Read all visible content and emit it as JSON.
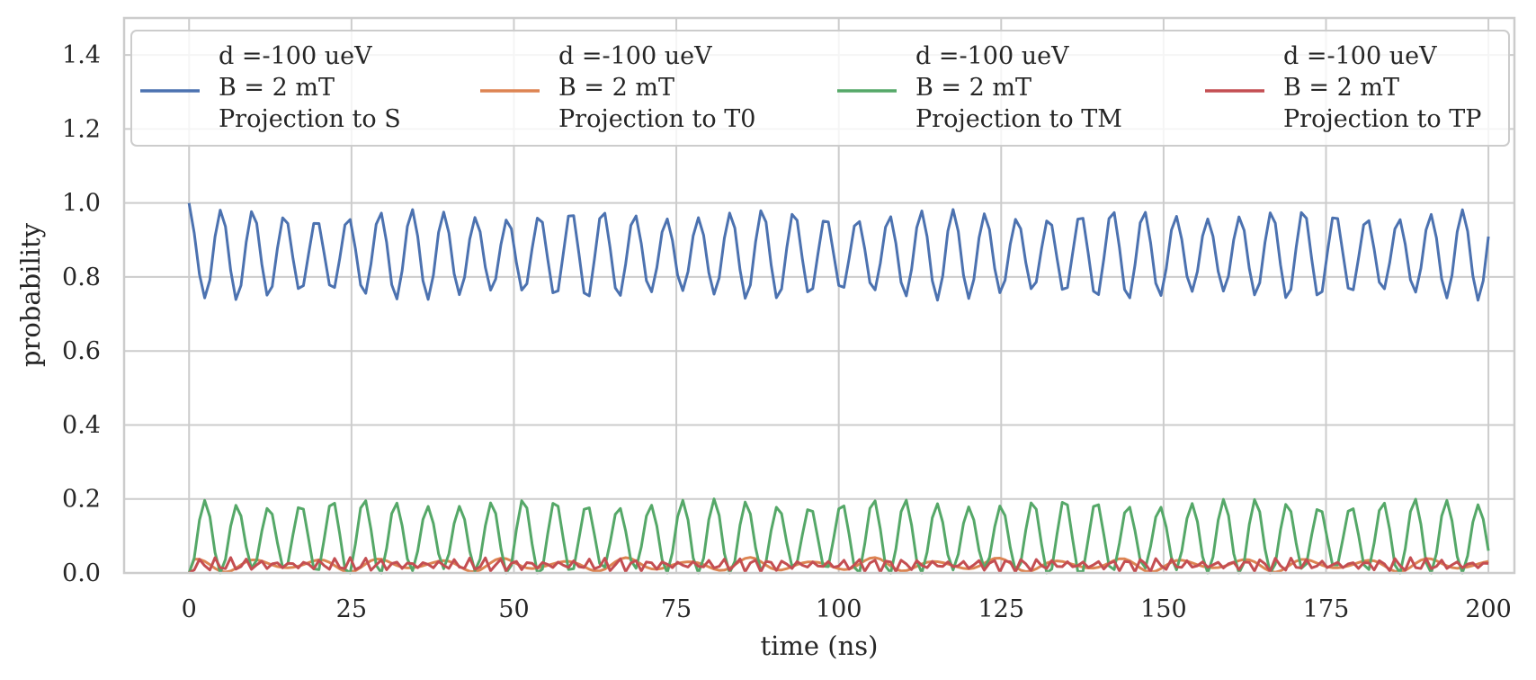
{
  "chart_data": {
    "type": "line",
    "xlabel": "time (ns)",
    "ylabel": "probability",
    "xlim": [
      -10,
      204
    ],
    "ylim": [
      0,
      1.5
    ],
    "xticks": [
      0,
      25,
      50,
      75,
      100,
      125,
      150,
      175,
      200
    ],
    "xtick_labels": [
      "0",
      "25",
      "50",
      "75",
      "100",
      "125",
      "150",
      "175",
      "200"
    ],
    "yticks": [
      0.0,
      0.2,
      0.4,
      0.6,
      0.8,
      1.0,
      1.2,
      1.4
    ],
    "ytick_labels": [
      "0.0",
      "0.2",
      "0.4",
      "0.6",
      "0.8",
      "1.0",
      "1.2",
      "1.4"
    ],
    "grid": true,
    "legend_position": "top",
    "legend_columns": 4,
    "x_range": [
      0,
      200
    ],
    "n_points": 250,
    "series": [
      {
        "name": "d =-100 ueV\nB = 2 mT\nProjection to S",
        "legend_lines": [
          "d =-100 ueV",
          "B = 2 mT",
          "Projection to S"
        ],
        "color": "#4c72b0",
        "baseline": 0.86,
        "amplitude": 0.11,
        "period_ns": 4.9,
        "start_value": 1.0,
        "range": [
          0.73,
          1.0
        ]
      },
      {
        "name": "d =-100 ueV\nB = 2 mT\nProjection to T0",
        "legend_lines": [
          "d =-100 ueV",
          "B = 2 mT",
          "Projection to T0"
        ],
        "color": "#dd8452",
        "baseline": 0.022,
        "amplitude": 0.02,
        "period_ns": 9.5,
        "start_value": 0.0,
        "range": [
          0.0,
          0.045
        ]
      },
      {
        "name": "d =-100 ueV\nB = 2 mT\nProjection to TM",
        "legend_lines": [
          "d =-100 ueV",
          "B = 2 mT",
          "Projection to TM"
        ],
        "color": "#55a868",
        "baseline": 0.095,
        "amplitude": 0.095,
        "period_ns": 4.9,
        "start_value": 0.0,
        "range": [
          0.0,
          0.2
        ]
      },
      {
        "name": "d =-100 ueV\nB = 2 mT\nProjection to TP",
        "legend_lines": [
          "d =-100 ueV",
          "B = 2 mT",
          "Projection to TP"
        ],
        "color": "#c44e52",
        "baseline": 0.022,
        "amplitude": 0.02,
        "period_ns": 2.3,
        "start_value": 0.0,
        "range": [
          0.0,
          0.045
        ]
      }
    ]
  }
}
